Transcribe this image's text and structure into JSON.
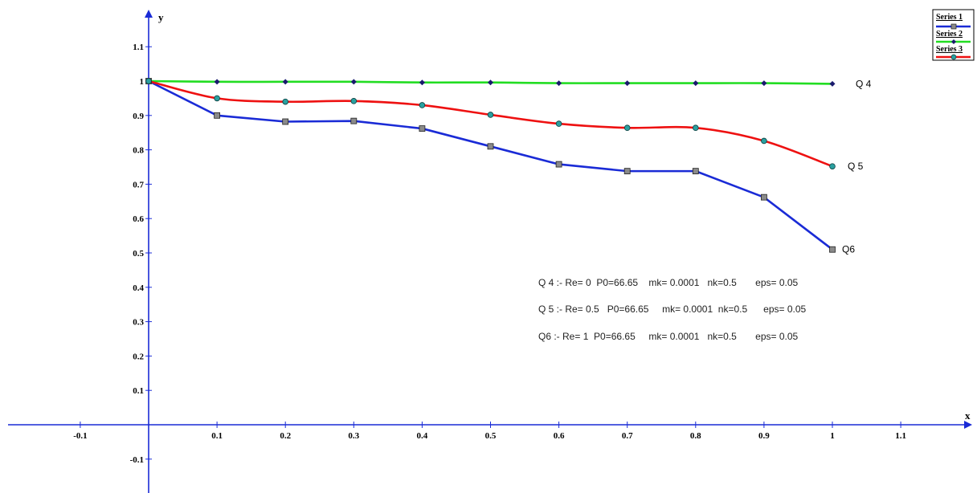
{
  "chart_data": {
    "type": "line",
    "xlabel": "x",
    "ylabel": "y",
    "xlim": [
      -0.2,
      1.2
    ],
    "ylim": [
      -0.18,
      1.2
    ],
    "x_ticks": [
      -0.1,
      0.1,
      0.2,
      0.3,
      0.4,
      0.5,
      0.6,
      0.7,
      0.8,
      0.9,
      1,
      1.1
    ],
    "x_tick_labels": [
      "-0.1",
      "0.1",
      "0.2",
      "0.3",
      "0.4",
      "0.5",
      "0.6",
      "0.7",
      "0.8",
      "0.9",
      "1",
      "1.1"
    ],
    "y_ticks": [
      -0.1,
      0.1,
      0.2,
      0.3,
      0.4,
      0.5,
      0.6,
      0.7,
      0.8,
      0.9,
      1,
      1.1
    ],
    "y_tick_labels": [
      "-0.1",
      "0.1",
      "0.2",
      "0.3",
      "0.4",
      "0.5",
      "0.6",
      "0.7",
      "0.8",
      "0.9",
      "1",
      "1.1"
    ],
    "grid": false,
    "legend_position": "top-right",
    "x": [
      0,
      0.1,
      0.2,
      0.3,
      0.4,
      0.5,
      0.6,
      0.7,
      0.8,
      0.9,
      1
    ],
    "series": [
      {
        "name": "Series 1",
        "color": "#1a2bd6",
        "marker": "square",
        "marker_color": "#8a8a8a",
        "curve_label": "Q6",
        "values": [
          1.0,
          0.9,
          0.882,
          0.884,
          0.862,
          0.81,
          0.758,
          0.738,
          0.738,
          0.662,
          0.51
        ]
      },
      {
        "name": "Series 2",
        "color": "#22dd22",
        "marker": "diamond",
        "marker_color": "#1a1a6e",
        "curve_label": "Q 4",
        "values": [
          1.0,
          0.998,
          0.998,
          0.998,
          0.996,
          0.996,
          0.994,
          0.994,
          0.994,
          0.994,
          0.992
        ]
      },
      {
        "name": "Series 3",
        "color": "#ee1111",
        "marker": "circle",
        "marker_color": "#2aa0a0",
        "curve_label": "Q 5",
        "values": [
          1.0,
          0.95,
          0.94,
          0.942,
          0.93,
          0.902,
          0.876,
          0.864,
          0.864,
          0.826,
          0.752
        ]
      }
    ],
    "annotations": [
      "Q 4 :- Re= 0  P0=66.65    mk= 0.0001   nk=0.5       eps= 0.05",
      "Q 5 :- Re= 0.5   P0=66.65     mk= 0.0001  nk=0.5      eps= 0.05",
      "Q6 :- Re= 1  P0=66.65     mk= 0.0001   nk=0.5       eps= 0.05"
    ]
  },
  "colors": {
    "axis": "#1a2bd6"
  }
}
